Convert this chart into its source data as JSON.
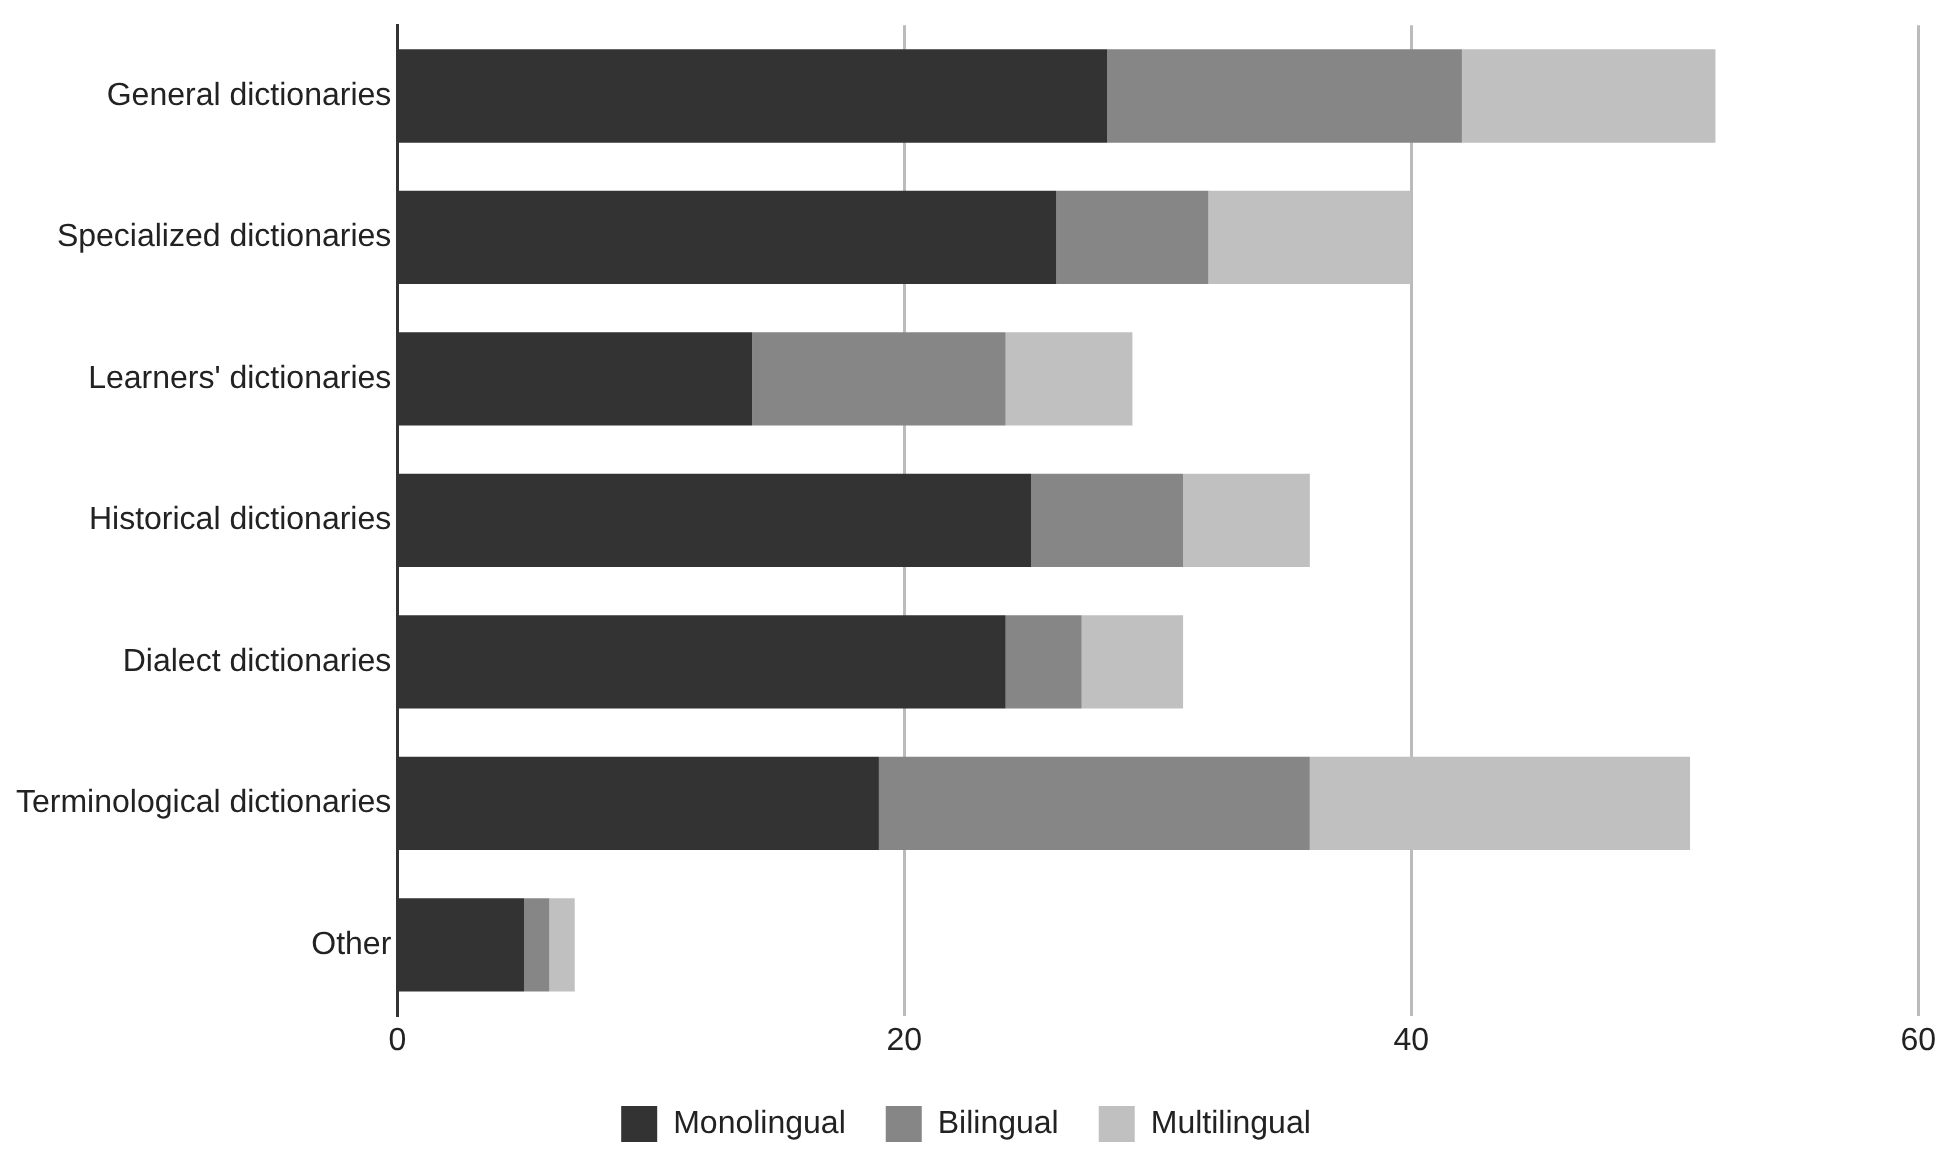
{
  "chart_data": {
    "type": "bar",
    "orientation": "horizontal",
    "stacked": true,
    "categories": [
      "General dictionaries",
      "Specialized dictionaries",
      "Learners' dictionaries",
      "Historical dictionaries",
      "Dialect dictionaries",
      "Terminological dictionaries",
      "Other"
    ],
    "series": [
      {
        "name": "Monolingual",
        "color": "#333333",
        "values": [
          28,
          26,
          14,
          25,
          24,
          19,
          5
        ]
      },
      {
        "name": "Bilingual",
        "color": "#868686",
        "values": [
          14,
          6,
          10,
          6,
          3,
          17,
          1
        ]
      },
      {
        "name": "Multilingual",
        "color": "#c0c0c0",
        "values": [
          10,
          8,
          5,
          5,
          4,
          15,
          1
        ]
      }
    ],
    "xlim": [
      0,
      60
    ],
    "xticks": [
      0,
      20,
      40,
      60
    ],
    "grid": "x",
    "legend": "bottom"
  }
}
